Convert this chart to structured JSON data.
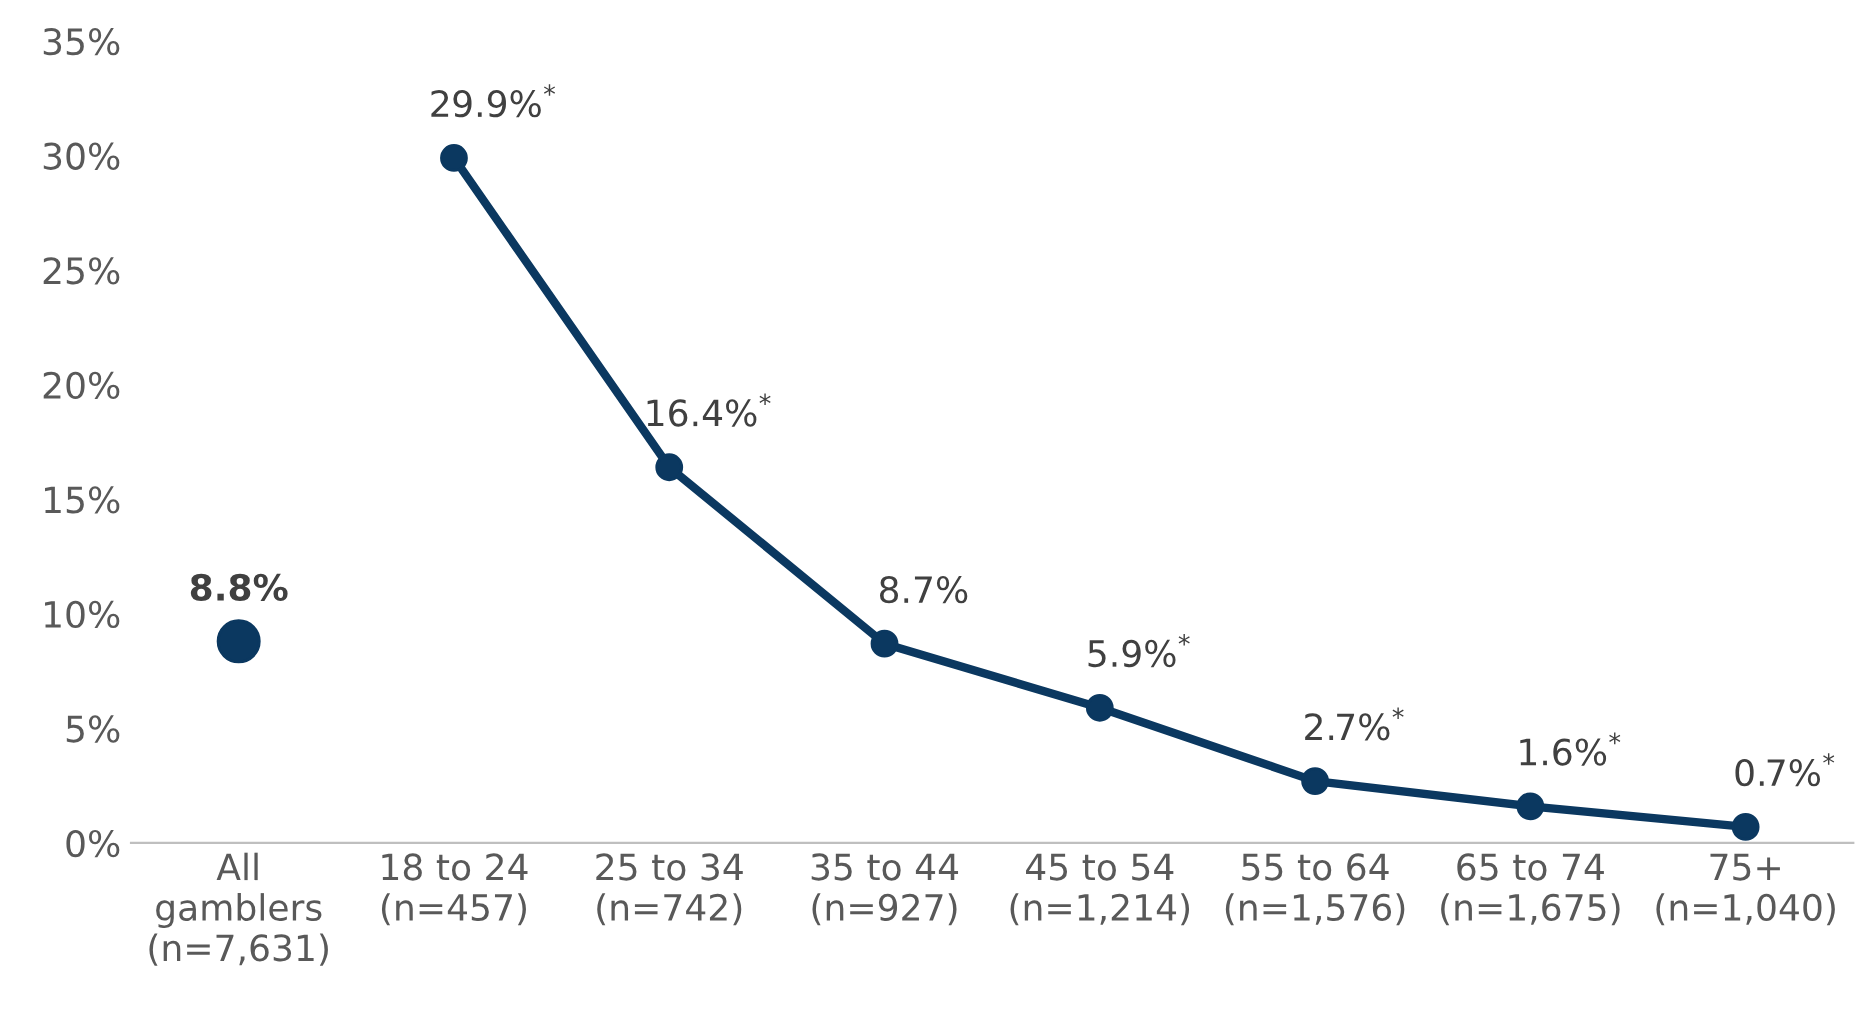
{
  "chart_data": {
    "type": "line",
    "categories": [
      "All\ngamblers\n(n=7,631)",
      "18 to 24\n(n=457)",
      "25 to 34\n(n=742)",
      "35 to 44\n(n=927)",
      "45 to 54\n(n=1,214)",
      "55 to 64\n(n=1,576)",
      "65 to 74\n(n=1,675)",
      "75+\n(n=1,040)"
    ],
    "series": [
      {
        "type": "scatter",
        "color": "#0b3860",
        "values": [
          8.8,
          null,
          null,
          null,
          null,
          null,
          null,
          null
        ],
        "value_labels": [
          "8.8%",
          null,
          null,
          null,
          null,
          null,
          null,
          null
        ]
      },
      {
        "color": "#0b3860",
        "values": [
          null,
          29.9,
          16.4,
          8.7,
          5.9,
          2.7,
          1.6,
          0.7
        ],
        "value_labels": [
          null,
          "29.9%$^{*}$",
          "16.4%$^{*}$",
          "8.7%",
          "5.9%$^{*}$",
          "2.7%$^{*}$",
          "1.6%$^{*}$",
          "0.7%$^{*}$"
        ]
      }
    ],
    "ylim": [
      0,
      35
    ],
    "yticks": [
      {
        "value": 0,
        "label": "0%"
      },
      {
        "value": 5,
        "label": "5%"
      },
      {
        "value": 10,
        "label": "10%"
      },
      {
        "value": 15,
        "label": "15%"
      },
      {
        "value": 20,
        "label": "20%"
      },
      {
        "value": 25,
        "label": "25%"
      },
      {
        "value": 30,
        "label": "30%"
      },
      {
        "value": 35,
        "label": "35%"
      }
    ],
    "marker": "circle",
    "line_style": "solid",
    "grid": false,
    "legend": false
  }
}
